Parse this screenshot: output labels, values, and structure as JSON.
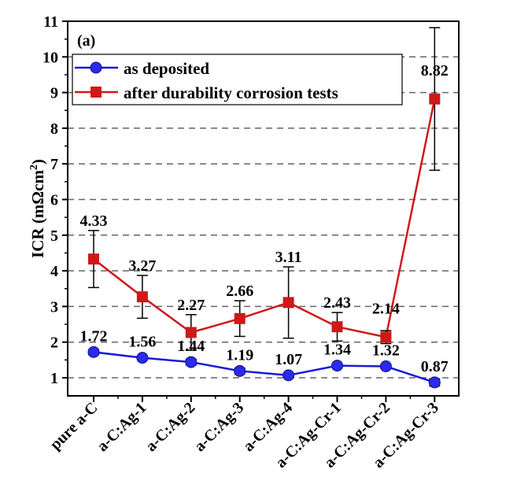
{
  "chart_data": {
    "type": "line",
    "panel_label": "(a)",
    "ylabel": "ICR (mΩcm²)",
    "ylabel_parts": {
      "main": "ICR (mΩcm",
      "sup": "2",
      "end": ")"
    },
    "xlabel": "",
    "ylim": [
      0.5,
      11
    ],
    "yticks": [
      1,
      2,
      3,
      4,
      5,
      6,
      7,
      8,
      9,
      10,
      11
    ],
    "grid": "horizontal dashed",
    "legend_placement": "top-left",
    "categories": [
      "pure a-C",
      "a-C:Ag-1",
      "a-C:Ag-2",
      "a-C:Ag-3",
      "a-C:Ag-4",
      "a-C:Ag-Cr-1",
      "a-C:Ag-Cr-2",
      "a-C:Ag-Cr-3"
    ],
    "series": [
      {
        "name": "as deposited",
        "color": "#1a1adb",
        "marker": "circle",
        "values": [
          1.72,
          1.56,
          1.44,
          1.19,
          1.07,
          1.34,
          1.32,
          0.87
        ],
        "labels": [
          "1.72",
          "1.56",
          "1.44",
          "1.19",
          "1.07",
          "1.34",
          "1.32",
          "0.87"
        ],
        "error": [
          0.07,
          0.05,
          0.08,
          0.08,
          0.05,
          0.05,
          0.05,
          0.1
        ]
      },
      {
        "name": "after durability corrosion tests",
        "color": "#d01818",
        "marker": "square",
        "values": [
          4.33,
          3.27,
          2.27,
          2.66,
          3.11,
          2.43,
          2.14,
          8.82
        ],
        "labels": [
          "4.33",
          "3.27",
          "2.27",
          "2.66",
          "3.11",
          "2.43",
          "2.14",
          "8.82"
        ],
        "error": [
          0.8,
          0.6,
          0.5,
          0.5,
          1.0,
          0.4,
          0.18,
          2.0
        ]
      }
    ]
  }
}
